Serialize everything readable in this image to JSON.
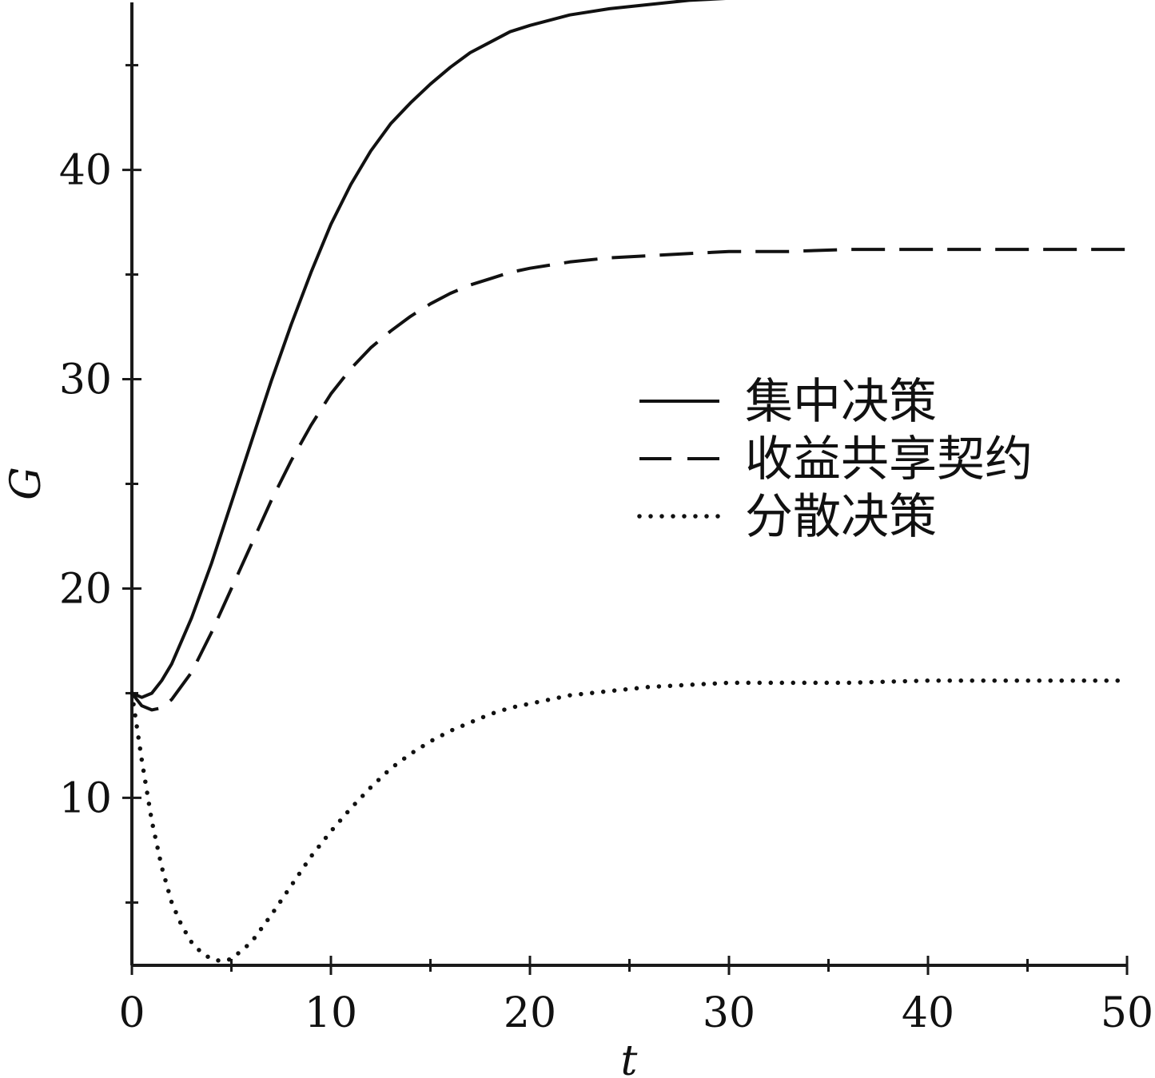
{
  "chart_data": {
    "type": "line",
    "xlabel": "t",
    "ylabel": "G",
    "xlim": [
      0,
      50
    ],
    "ylim": [
      2,
      48
    ],
    "x_ticks": [
      0,
      10,
      20,
      30,
      40,
      50
    ],
    "y_ticks": [
      10,
      20,
      30,
      40
    ],
    "legend_position": "right-middle",
    "grid": false,
    "series": [
      {
        "name": "集中决策",
        "style": "solid",
        "x": [
          0,
          0.5,
          1,
          1.5,
          2,
          3,
          4,
          5,
          6,
          7,
          8,
          9,
          10,
          11,
          12,
          13,
          14,
          15,
          16,
          17,
          18,
          19,
          20,
          22,
          24,
          26,
          28,
          30,
          33,
          36,
          40,
          45,
          50
        ],
        "y": [
          15.0,
          14.8,
          15.0,
          15.6,
          16.4,
          18.6,
          21.2,
          24.1,
          27.0,
          29.9,
          32.6,
          35.1,
          37.4,
          39.3,
          40.9,
          42.2,
          43.2,
          44.1,
          44.9,
          45.6,
          46.1,
          46.6,
          46.9,
          47.4,
          47.7,
          47.9,
          48.1,
          48.2,
          48.3,
          48.4,
          48.4,
          48.5,
          48.5
        ]
      },
      {
        "name": "收益共享契约",
        "style": "dashed",
        "x": [
          0,
          0.5,
          1,
          1.5,
          2,
          3,
          4,
          5,
          6,
          7,
          8,
          9,
          10,
          11,
          12,
          13,
          14,
          15,
          16,
          17,
          18,
          19,
          20,
          22,
          24,
          26,
          28,
          30,
          33,
          36,
          40,
          45,
          50
        ],
        "y": [
          15.0,
          14.4,
          14.2,
          14.3,
          14.7,
          16.0,
          17.9,
          20.0,
          22.1,
          24.2,
          26.1,
          27.8,
          29.3,
          30.5,
          31.5,
          32.3,
          33.0,
          33.6,
          34.1,
          34.5,
          34.8,
          35.1,
          35.3,
          35.6,
          35.8,
          35.9,
          36.0,
          36.1,
          36.1,
          36.2,
          36.2,
          36.2,
          36.2
        ]
      },
      {
        "name": "分散决策",
        "style": "dotted",
        "x": [
          0,
          0.5,
          1,
          1.5,
          2,
          2.5,
          3,
          3.5,
          4,
          4.5,
          5,
          6,
          7,
          8,
          9,
          10,
          11,
          12,
          13,
          14,
          15,
          16,
          17,
          18,
          19,
          20,
          22,
          24,
          26,
          28,
          30,
          33,
          36,
          40,
          45,
          50
        ],
        "y": [
          15.0,
          11.8,
          8.9,
          6.7,
          5.0,
          3.9,
          3.1,
          2.6,
          2.3,
          2.2,
          2.3,
          3.1,
          4.4,
          5.8,
          7.2,
          8.4,
          9.5,
          10.5,
          11.4,
          12.1,
          12.7,
          13.2,
          13.6,
          14.0,
          14.3,
          14.5,
          14.9,
          15.1,
          15.3,
          15.4,
          15.5,
          15.5,
          15.5,
          15.6,
          15.6,
          15.6
        ]
      }
    ]
  },
  "colors": {
    "axis": "#1a1a1a",
    "line": "#111111"
  }
}
